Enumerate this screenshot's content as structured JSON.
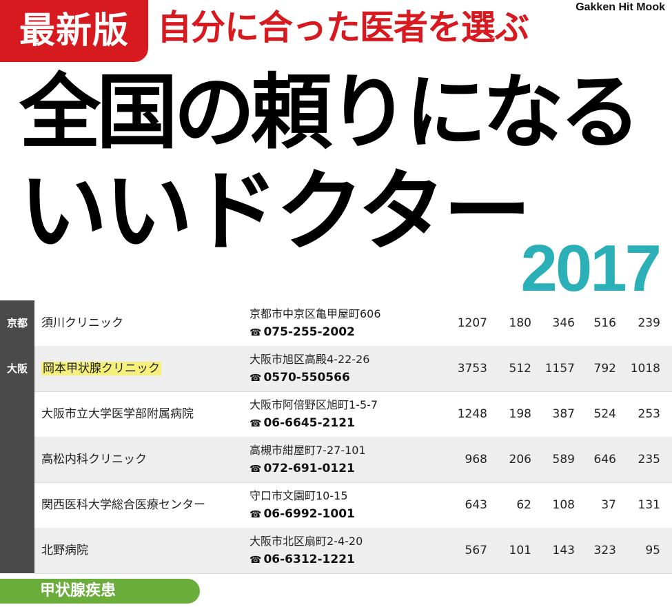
{
  "header": {
    "badge": "最新版",
    "subtitle": "自分に合った医者を選ぶ",
    "publisher": "Gakken Hit Mook",
    "title_line1": "全国の頼りになる",
    "title_line2": "いいドクター",
    "year": "2017"
  },
  "table": {
    "regions": [
      {
        "label": "京都"
      },
      {
        "label": "大阪"
      }
    ],
    "rows": [
      {
        "name": "須川クリニック",
        "address": "京都市中京区亀甲屋町606",
        "tel": "075-255-2002",
        "values": [
          "1207",
          "180",
          "346",
          "516",
          "239"
        ],
        "highlight": false
      },
      {
        "name": "岡本甲状腺クリニック",
        "address": "大阪市旭区高殿4-22-26",
        "tel": "0570-550566",
        "values": [
          "3753",
          "512",
          "1157",
          "792",
          "1018"
        ],
        "highlight": true
      },
      {
        "name": "大阪市立大学医学部附属病院",
        "address": "大阪市阿倍野区旭町1-5-7",
        "tel": "06-6645-2121",
        "values": [
          "1248",
          "198",
          "387",
          "524",
          "253"
        ],
        "highlight": false
      },
      {
        "name": "高松内科クリニック",
        "address": "高槻市紺屋町7-27-101",
        "tel": "072-691-0121",
        "values": [
          "968",
          "206",
          "589",
          "646",
          "235"
        ],
        "highlight": false
      },
      {
        "name": "関西医科大学総合医療センター",
        "address": "守口市文園町10-15",
        "tel": "06-6992-1001",
        "values": [
          "643",
          "62",
          "108",
          "37",
          "131"
        ],
        "highlight": false
      },
      {
        "name": "北野病院",
        "address": "大阪市北区扇町2-4-20",
        "tel": "06-6312-1221",
        "values": [
          "567",
          "101",
          "143",
          "323",
          "95"
        ],
        "highlight": false
      }
    ],
    "phone_icon": "☎"
  },
  "category": "甲状腺疾患",
  "colors": {
    "badge": "#d71920",
    "year": "#2bb0b8",
    "category": "#6aad3a",
    "highlight": "#f5f07a"
  }
}
